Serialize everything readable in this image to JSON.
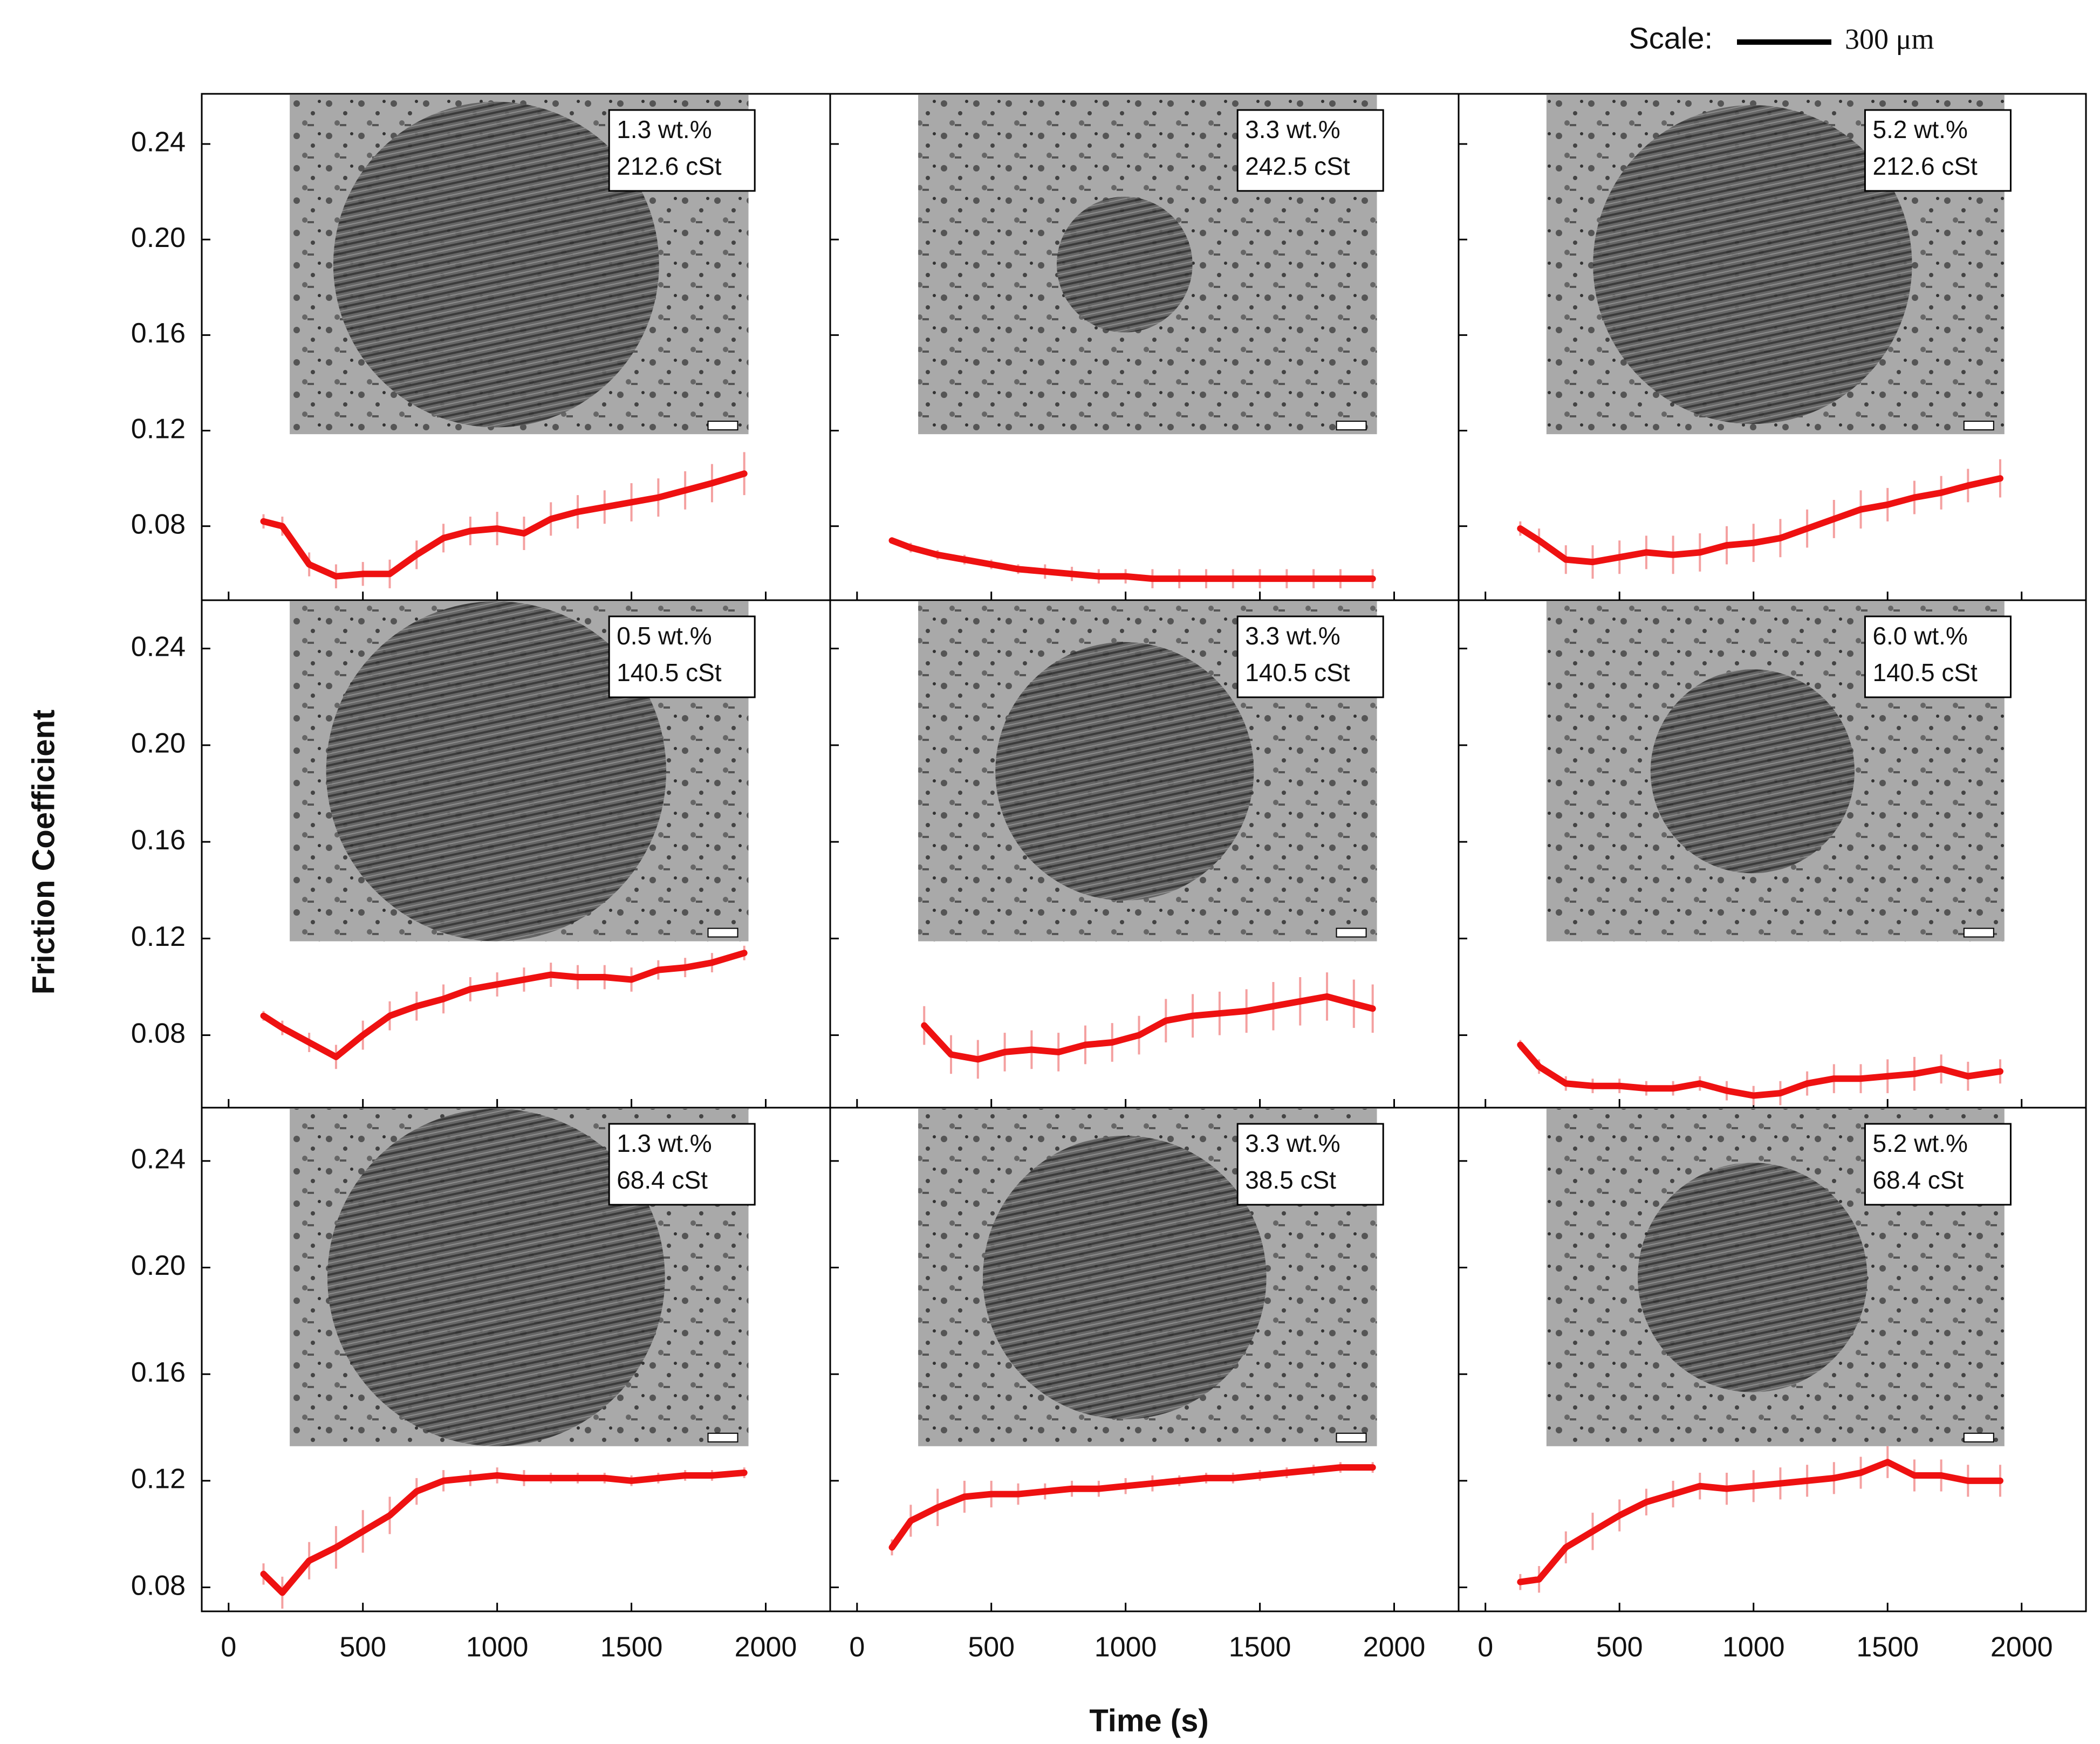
{
  "scale_label": "Scale:",
  "scale_value": "300 μm",
  "ylabel": "Friction Coefficient",
  "xlabel": "Time (s)",
  "chart_data": [
    {
      "type": "line",
      "label": [
        "1.3 wt.%",
        "212.6 cSt"
      ],
      "x": [
        130,
        200,
        300,
        400,
        500,
        600,
        700,
        800,
        900,
        1000,
        1100,
        1200,
        1300,
        1400,
        1500,
        1600,
        1700,
        1800,
        1920
      ],
      "series": [
        {
          "color": "#ee1111",
          "values": [
            0.082,
            0.08,
            0.064,
            0.059,
            0.06,
            0.06,
            0.068,
            0.075,
            0.078,
            0.079,
            0.077,
            0.083,
            0.086,
            0.088,
            0.09,
            0.092,
            0.095,
            0.098,
            0.102
          ],
          "errors": [
            0.003,
            0.004,
            0.005,
            0.005,
            0.005,
            0.006,
            0.006,
            0.006,
            0.006,
            0.007,
            0.007,
            0.007,
            0.007,
            0.007,
            0.008,
            0.008,
            0.008,
            0.008,
            0.009
          ]
        }
      ],
      "xlim": [
        -100,
        2240
      ],
      "ylim": [
        0.049,
        0.261
      ],
      "xticks": [
        0,
        500,
        1000,
        1500,
        2000
      ],
      "yticks": [
        0.08,
        0.12,
        0.16,
        {
          "value": 0.2,
          "label": "0.20"
        },
        0.24
      ]
    },
    {
      "type": "line",
      "label": [
        "3.3 wt.%",
        "242.5 cSt"
      ],
      "x": [
        130,
        200,
        300,
        400,
        500,
        600,
        700,
        800,
        900,
        1000,
        1100,
        1200,
        1300,
        1400,
        1500,
        1600,
        1700,
        1800,
        1920
      ],
      "series": [
        {
          "color": "#ee1111",
          "values": [
            0.074,
            0.071,
            0.068,
            0.066,
            0.064,
            0.062,
            0.061,
            0.06,
            0.059,
            0.059,
            0.058,
            0.058,
            0.058,
            0.058,
            0.058,
            0.058,
            0.058,
            0.058,
            0.058
          ],
          "errors": [
            0.001,
            0.002,
            0.002,
            0.002,
            0.002,
            0.002,
            0.003,
            0.003,
            0.003,
            0.003,
            0.004,
            0.004,
            0.004,
            0.004,
            0.004,
            0.004,
            0.004,
            0.004,
            0.004
          ]
        }
      ],
      "xlim": [
        -100,
        2240
      ],
      "ylim": [
        0.049,
        0.261
      ],
      "xticks": [
        0,
        500,
        1000,
        1500,
        2000
      ],
      "yticks": [
        0.08,
        0.12,
        0.16,
        {
          "value": 0.2,
          "label": "0.20"
        },
        0.24
      ]
    },
    {
      "type": "line",
      "label": [
        "5.2 wt.%",
        "212.6 cSt"
      ],
      "x": [
        130,
        200,
        300,
        400,
        500,
        600,
        700,
        800,
        900,
        1000,
        1100,
        1200,
        1300,
        1400,
        1500,
        1600,
        1700,
        1800,
        1920
      ],
      "series": [
        {
          "color": "#ee1111",
          "values": [
            0.079,
            0.074,
            0.066,
            0.065,
            0.067,
            0.069,
            0.068,
            0.069,
            0.072,
            0.073,
            0.075,
            0.079,
            0.083,
            0.087,
            0.089,
            0.092,
            0.094,
            0.097,
            0.1
          ],
          "errors": [
            0.003,
            0.005,
            0.006,
            0.007,
            0.007,
            0.007,
            0.008,
            0.008,
            0.008,
            0.008,
            0.008,
            0.008,
            0.008,
            0.008,
            0.007,
            0.007,
            0.007,
            0.007,
            0.008
          ]
        }
      ],
      "xlim": [
        -100,
        2240
      ],
      "ylim": [
        0.049,
        0.261
      ],
      "xticks": [
        0,
        500,
        1000,
        1500,
        2000
      ],
      "yticks": [
        0.08,
        0.12,
        0.16,
        {
          "value": 0.2,
          "label": "0.20"
        },
        0.24
      ]
    },
    {
      "type": "line",
      "label": [
        "0.5 wt.%",
        "140.5 cSt"
      ],
      "x": [
        130,
        200,
        300,
        400,
        500,
        600,
        700,
        800,
        900,
        1000,
        1100,
        1200,
        1300,
        1400,
        1500,
        1600,
        1700,
        1800,
        1920
      ],
      "series": [
        {
          "color": "#ee1111",
          "values": [
            0.088,
            0.083,
            0.077,
            0.071,
            0.08,
            0.088,
            0.092,
            0.095,
            0.099,
            0.101,
            0.103,
            0.105,
            0.104,
            0.104,
            0.103,
            0.107,
            0.108,
            0.11,
            0.114
          ],
          "errors": [
            0.002,
            0.003,
            0.004,
            0.005,
            0.006,
            0.006,
            0.006,
            0.006,
            0.005,
            0.005,
            0.005,
            0.005,
            0.005,
            0.005,
            0.005,
            0.004,
            0.004,
            0.004,
            0.003
          ]
        }
      ],
      "xlim": [
        -100,
        2240
      ],
      "ylim": [
        0.05,
        0.26
      ],
      "xticks": [
        0,
        500,
        1000,
        1500,
        2000
      ],
      "yticks": [
        0.08,
        0.12,
        0.16,
        {
          "value": 0.2,
          "label": "0.20"
        },
        0.24
      ]
    },
    {
      "type": "line",
      "label": [
        "3.3 wt.%",
        "140.5 cSt"
      ],
      "x": [
        250,
        350,
        450,
        550,
        650,
        750,
        850,
        950,
        1050,
        1150,
        1250,
        1350,
        1450,
        1550,
        1650,
        1750,
        1850,
        1920
      ],
      "series": [
        {
          "color": "#ee1111",
          "values": [
            0.084,
            0.072,
            0.07,
            0.073,
            0.074,
            0.073,
            0.076,
            0.077,
            0.08,
            0.086,
            0.088,
            0.089,
            0.09,
            0.092,
            0.094,
            0.096,
            0.093,
            0.091
          ],
          "errors": [
            0.008,
            0.008,
            0.008,
            0.008,
            0.008,
            0.008,
            0.008,
            0.008,
            0.008,
            0.009,
            0.009,
            0.009,
            0.009,
            0.01,
            0.01,
            0.01,
            0.01,
            0.01
          ]
        }
      ],
      "xlim": [
        -100,
        2240
      ],
      "ylim": [
        0.05,
        0.26
      ],
      "xticks": [
        0,
        500,
        1000,
        1500,
        2000
      ],
      "yticks": [
        0.08,
        0.12,
        0.16,
        {
          "value": 0.2,
          "label": "0.20"
        },
        0.24
      ]
    },
    {
      "type": "line",
      "label": [
        "6.0 wt.%",
        "140.5 cSt"
      ],
      "x": [
        130,
        200,
        300,
        400,
        500,
        600,
        700,
        800,
        900,
        1000,
        1100,
        1200,
        1300,
        1400,
        1500,
        1600,
        1700,
        1800,
        1920
      ],
      "series": [
        {
          "color": "#ee1111",
          "values": [
            0.076,
            0.067,
            0.06,
            0.059,
            0.059,
            0.058,
            0.058,
            0.06,
            0.057,
            0.055,
            0.056,
            0.06,
            0.062,
            0.062,
            0.063,
            0.064,
            0.066,
            0.063,
            0.065
          ],
          "errors": [
            0.002,
            0.003,
            0.003,
            0.003,
            0.003,
            0.003,
            0.003,
            0.003,
            0.004,
            0.004,
            0.005,
            0.005,
            0.006,
            0.006,
            0.007,
            0.007,
            0.006,
            0.006,
            0.005
          ]
        }
      ],
      "xlim": [
        -100,
        2240
      ],
      "ylim": [
        0.05,
        0.26
      ],
      "xticks": [
        0,
        500,
        1000,
        1500,
        2000
      ],
      "yticks": [
        0.08,
        0.12,
        0.16,
        {
          "value": 0.2,
          "label": "0.20"
        },
        0.24
      ]
    },
    {
      "type": "line",
      "label": [
        "1.3 wt.%",
        "68.4 cSt"
      ],
      "x": [
        130,
        200,
        300,
        400,
        500,
        600,
        700,
        800,
        900,
        1000,
        1100,
        1200,
        1300,
        1400,
        1500,
        1600,
        1700,
        1800,
        1920
      ],
      "series": [
        {
          "color": "#ee1111",
          "values": [
            0.085,
            0.078,
            0.09,
            0.095,
            0.101,
            0.107,
            0.116,
            0.12,
            0.121,
            0.122,
            0.121,
            0.121,
            0.121,
            0.121,
            0.12,
            0.121,
            0.122,
            0.122,
            0.123
          ],
          "errors": [
            0.004,
            0.006,
            0.007,
            0.008,
            0.008,
            0.007,
            0.005,
            0.004,
            0.003,
            0.003,
            0.003,
            0.002,
            0.002,
            0.002,
            0.002,
            0.002,
            0.002,
            0.002,
            0.002
          ]
        }
      ],
      "xlim": [
        -100,
        2240
      ],
      "ylim": [
        0.071,
        0.26
      ],
      "xticks": [
        0,
        500,
        1000,
        1500,
        2000
      ],
      "yticks": [
        0.08,
        0.12,
        0.16,
        {
          "value": 0.2,
          "label": "0.20"
        },
        0.24
      ]
    },
    {
      "type": "line",
      "label": [
        "3.3 wt.%",
        "38.5 cSt"
      ],
      "x": [
        130,
        200,
        300,
        400,
        500,
        600,
        700,
        800,
        900,
        1000,
        1100,
        1200,
        1300,
        1400,
        1500,
        1600,
        1700,
        1800,
        1920
      ],
      "series": [
        {
          "color": "#ee1111",
          "values": [
            0.095,
            0.105,
            0.11,
            0.114,
            0.115,
            0.115,
            0.116,
            0.117,
            0.117,
            0.118,
            0.119,
            0.12,
            0.121,
            0.121,
            0.122,
            0.123,
            0.124,
            0.125,
            0.125
          ],
          "errors": [
            0.003,
            0.006,
            0.007,
            0.006,
            0.005,
            0.004,
            0.003,
            0.003,
            0.003,
            0.003,
            0.003,
            0.002,
            0.002,
            0.002,
            0.002,
            0.002,
            0.002,
            0.002,
            0.002
          ]
        }
      ],
      "xlim": [
        -100,
        2240
      ],
      "ylim": [
        0.071,
        0.26
      ],
      "xticks": [
        0,
        500,
        1000,
        1500,
        2000
      ],
      "yticks": [
        0.08,
        0.12,
        0.16,
        {
          "value": 0.2,
          "label": "0.20"
        },
        0.24
      ]
    },
    {
      "type": "line",
      "label": [
        "5.2 wt.%",
        "68.4 cSt"
      ],
      "x": [
        130,
        200,
        300,
        400,
        500,
        600,
        700,
        800,
        900,
        1000,
        1100,
        1200,
        1300,
        1400,
        1500,
        1600,
        1700,
        1800,
        1920
      ],
      "series": [
        {
          "color": "#ee1111",
          "values": [
            0.082,
            0.083,
            0.095,
            0.101,
            0.107,
            0.112,
            0.115,
            0.118,
            0.117,
            0.118,
            0.119,
            0.12,
            0.121,
            0.123,
            0.127,
            0.122,
            0.122,
            0.12,
            0.12
          ],
          "errors": [
            0.003,
            0.005,
            0.006,
            0.007,
            0.006,
            0.005,
            0.005,
            0.005,
            0.006,
            0.006,
            0.006,
            0.006,
            0.006,
            0.006,
            0.006,
            0.006,
            0.006,
            0.006,
            0.006
          ]
        }
      ],
      "xlim": [
        -100,
        2240
      ],
      "ylim": [
        0.071,
        0.26
      ],
      "xticks": [
        0,
        500,
        1000,
        1500,
        2000
      ],
      "yticks": [
        0.08,
        0.12,
        0.16,
        {
          "value": 0.2,
          "label": "0.20"
        },
        0.24
      ]
    }
  ]
}
